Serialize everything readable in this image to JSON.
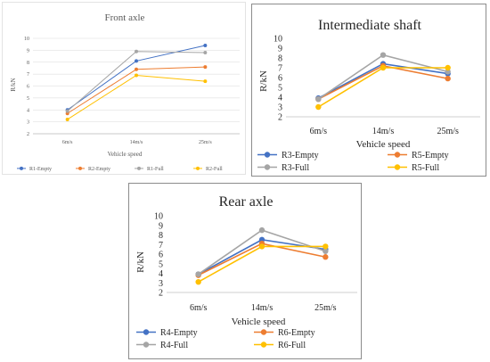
{
  "chart_data": [
    {
      "id": "front",
      "type": "line",
      "title": "Front axle",
      "xlabel": "Vehicle speed",
      "ylabel": "R/kN",
      "categories": [
        "6m/s",
        "14m/s",
        "25m/s"
      ],
      "ylim": [
        2,
        10
      ],
      "yticks": [
        "2",
        "3",
        "4",
        "5",
        "6",
        "7",
        "8",
        "9",
        "10"
      ],
      "grid": true,
      "legend": "bottom",
      "series": [
        {
          "name": "R1-Empty",
          "color": "#4472C4",
          "values": [
            4.0,
            8.1,
            9.4
          ]
        },
        {
          "name": "R2-Empty",
          "color": "#ED7D31",
          "values": [
            3.7,
            7.4,
            7.6
          ]
        },
        {
          "name": "R1-Full",
          "color": "#A5A5A5",
          "values": [
            3.9,
            8.9,
            8.8
          ]
        },
        {
          "name": "R2-Full",
          "color": "#FFC000",
          "values": [
            3.2,
            6.9,
            6.4
          ]
        }
      ]
    },
    {
      "id": "inter",
      "type": "line",
      "title": "Intermediate shaft",
      "xlabel": "Vehicle speed",
      "ylabel": "R/kN",
      "categories": [
        "6m/s",
        "14m/s",
        "25m/s"
      ],
      "ylim": [
        2,
        10
      ],
      "yticks": [
        "2",
        "3",
        "4",
        "5",
        "6",
        "7",
        "8",
        "9",
        "10"
      ],
      "grid": false,
      "legend": "bottom",
      "series": [
        {
          "name": "R3-Empty",
          "color": "#4472C4",
          "values": [
            3.9,
            7.4,
            6.4
          ]
        },
        {
          "name": "R5-Empty",
          "color": "#ED7D31",
          "values": [
            3.8,
            7.2,
            5.9
          ]
        },
        {
          "name": "R3-Full",
          "color": "#A5A5A5",
          "values": [
            3.8,
            8.3,
            6.6
          ]
        },
        {
          "name": "R5-Full",
          "color": "#FFC000",
          "values": [
            3.0,
            7.0,
            7.0
          ]
        }
      ]
    },
    {
      "id": "rear",
      "type": "line",
      "title": "Rear axle",
      "xlabel": "Vehicle speed",
      "ylabel": "R/kN",
      "categories": [
        "6m/s",
        "14m/s",
        "25m/s"
      ],
      "ylim": [
        2,
        10
      ],
      "yticks": [
        "2",
        "3",
        "4",
        "5",
        "6",
        "7",
        "8",
        "9",
        "10"
      ],
      "grid": false,
      "legend": "bottom",
      "series": [
        {
          "name": "R4-Empty",
          "color": "#4472C4",
          "values": [
            3.9,
            7.5,
            6.5
          ]
        },
        {
          "name": "R6-Empty",
          "color": "#ED7D31",
          "values": [
            3.8,
            7.1,
            5.7
          ]
        },
        {
          "name": "R4-Full",
          "color": "#A5A5A5",
          "values": [
            3.9,
            8.5,
            6.3
          ]
        },
        {
          "name": "R6-Full",
          "color": "#FFC000",
          "values": [
            3.1,
            6.8,
            6.8
          ]
        }
      ]
    }
  ]
}
